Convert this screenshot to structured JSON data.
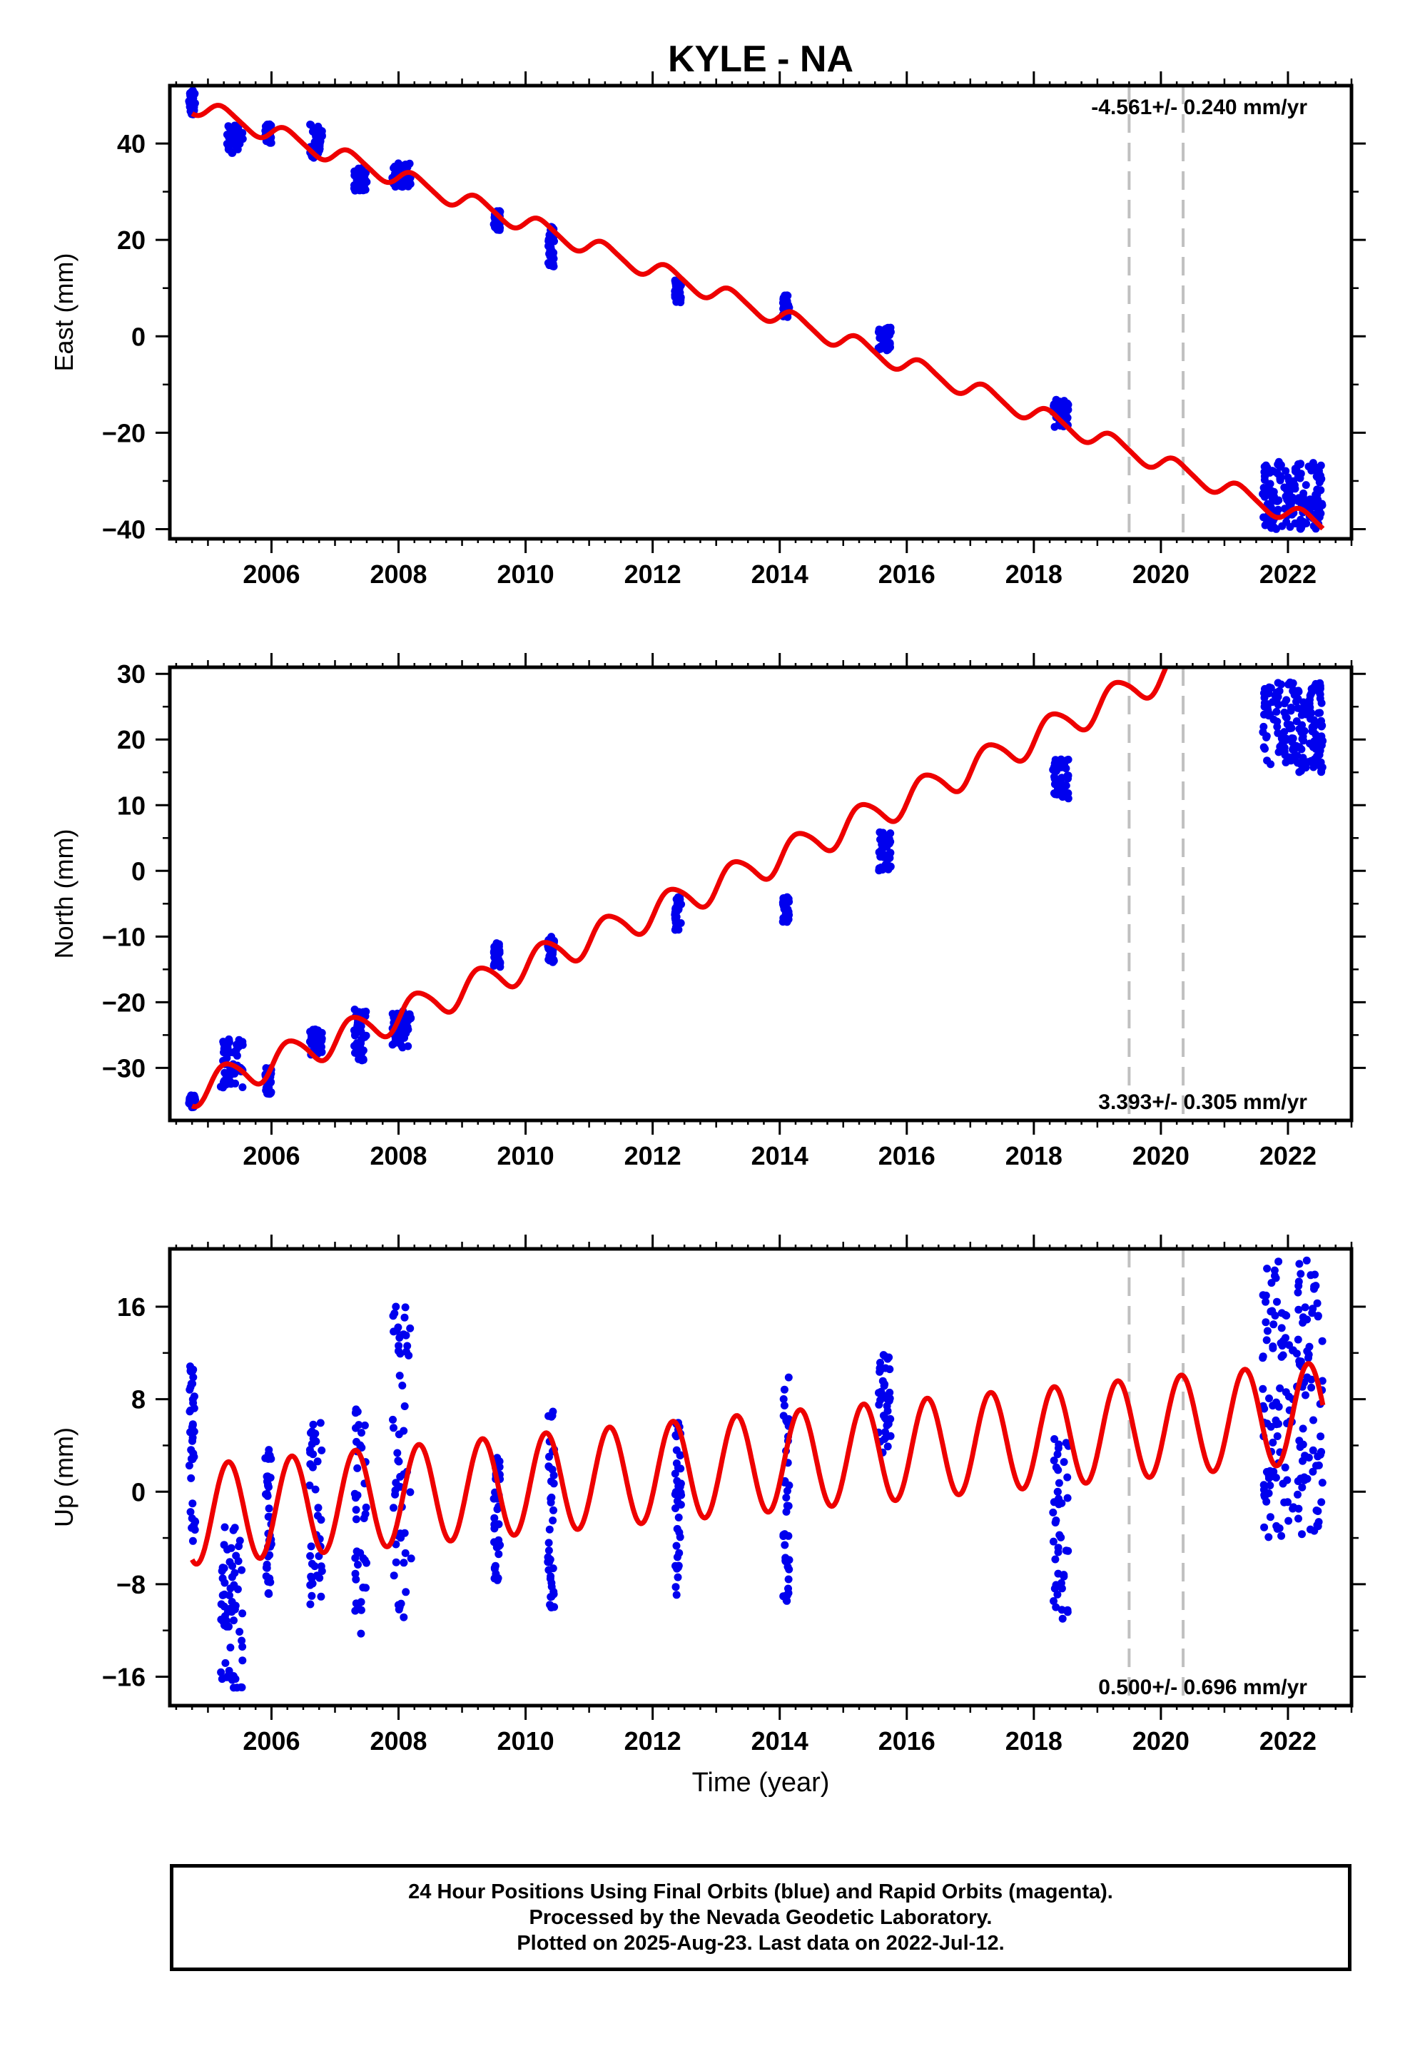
{
  "title": "KYLE - NA",
  "x_axis_label": "Time (year)",
  "footer": {
    "line1": "24 Hour Positions Using Final Orbits (blue) and Rapid Orbits (magenta).",
    "line2": "Processed by the Nevada Geodetic Laboratory.",
    "line3": "Plotted on 2025-Aug-23. Last data on 2022-Jul-12."
  },
  "colors": {
    "observations": "#0000ee",
    "model": "#ee0000",
    "event_lines": "#c0c0c0",
    "frame": "#000000"
  },
  "chart_data": [
    {
      "type": "scatter",
      "title": "KYLE - NA",
      "ylabel": "East (mm)",
      "xlabel": "",
      "rate_label": "-4.561+/- 0.240 mm/yr",
      "rate_label_position": "top-right",
      "xlim": [
        2004.4,
        2023.0
      ],
      "ylim": [
        -42,
        52
      ],
      "x_ticks": [
        2006,
        2008,
        2010,
        2012,
        2014,
        2016,
        2018,
        2020,
        2022
      ],
      "x_tick_labels": [
        "2006",
        "2008",
        "2010",
        "2012",
        "2014",
        "2016",
        "2018",
        "2020",
        "2022"
      ],
      "y_ticks": [
        -40,
        -20,
        0,
        20,
        40
      ],
      "y_tick_labels": [
        "−40",
        "−20",
        "0",
        "20",
        "40"
      ],
      "event_lines": [
        2019.5,
        2020.35
      ],
      "grid": false,
      "model": {
        "rate": -4.561,
        "y_at_2004_75": 48.0,
        "quadratic": -0.02,
        "annual_amp": 1.8,
        "annual_phase": 0.0,
        "semiannual_amp": 0.3,
        "semiannual_phase": 0.0
      },
      "observation_clusters": [
        {
          "x": [
            2004.7,
            2004.8
          ],
          "y_range": [
            46,
            51
          ]
        },
        {
          "x": [
            2005.3,
            2005.55
          ],
          "y_range": [
            38,
            44
          ]
        },
        {
          "x": [
            2005.9,
            2006.0
          ],
          "y_range": [
            40,
            44
          ]
        },
        {
          "x": [
            2006.6,
            2006.8
          ],
          "y_range": [
            37,
            44
          ]
        },
        {
          "x": [
            2007.3,
            2007.5
          ],
          "y_range": [
            30,
            35
          ]
        },
        {
          "x": [
            2007.9,
            2008.2
          ],
          "y_range": [
            31,
            36
          ]
        },
        {
          "x": [
            2009.5,
            2009.6
          ],
          "y_range": [
            22,
            26
          ]
        },
        {
          "x": [
            2010.35,
            2010.45
          ],
          "y_range": [
            14,
            23
          ]
        },
        {
          "x": [
            2012.35,
            2012.45
          ],
          "y_range": [
            7,
            12
          ]
        },
        {
          "x": [
            2014.05,
            2014.15
          ],
          "y_range": [
            4,
            9
          ]
        },
        {
          "x": [
            2015.55,
            2015.75
          ],
          "y_range": [
            -3,
            2
          ]
        },
        {
          "x": [
            2018.3,
            2018.55
          ],
          "y_range": [
            -19,
            -13
          ]
        },
        {
          "x": [
            2021.6,
            2022.55
          ],
          "y_range": [
            -40,
            -26
          ]
        }
      ]
    },
    {
      "type": "scatter",
      "title": "",
      "ylabel": "North (mm)",
      "xlabel": "",
      "rate_label": "3.393+/- 0.305 mm/yr",
      "rate_label_position": "bottom-right",
      "xlim": [
        2004.4,
        2023.0
      ],
      "ylim": [
        -38,
        31
      ],
      "x_ticks": [
        2006,
        2008,
        2010,
        2012,
        2014,
        2016,
        2018,
        2020,
        2022
      ],
      "x_tick_labels": [
        "2006",
        "2008",
        "2010",
        "2012",
        "2014",
        "2016",
        "2018",
        "2020",
        "2022"
      ],
      "y_ticks": [
        -30,
        -20,
        -10,
        0,
        10,
        20,
        30
      ],
      "y_tick_labels": [
        "−30",
        "−20",
        "−10",
        "0",
        "10",
        "20",
        "30"
      ],
      "event_lines": [
        2019.5,
        2020.35
      ],
      "grid": false,
      "model": {
        "rate": 3.393,
        "y_at_2004_75": -33.5,
        "quadratic": 0.05,
        "annual_amp": 2.4,
        "annual_phase": -0.3,
        "semiannual_amp": 0.3,
        "semiannual_phase": 0.0
      },
      "observation_clusters": [
        {
          "x": [
            2004.7,
            2004.8
          ],
          "y_range": [
            -36,
            -34
          ]
        },
        {
          "x": [
            2005.2,
            2005.55
          ],
          "y_range": [
            -33,
            -25
          ]
        },
        {
          "x": [
            2005.9,
            2006.0
          ],
          "y_range": [
            -34,
            -30
          ]
        },
        {
          "x": [
            2006.6,
            2006.8
          ],
          "y_range": [
            -28,
            -24
          ]
        },
        {
          "x": [
            2007.3,
            2007.5
          ],
          "y_range": [
            -29,
            -21
          ]
        },
        {
          "x": [
            2007.9,
            2008.2
          ],
          "y_range": [
            -27,
            -21
          ]
        },
        {
          "x": [
            2009.5,
            2009.6
          ],
          "y_range": [
            -15,
            -11
          ]
        },
        {
          "x": [
            2010.35,
            2010.45
          ],
          "y_range": [
            -14,
            -10
          ]
        },
        {
          "x": [
            2012.35,
            2012.45
          ],
          "y_range": [
            -9,
            -4
          ]
        },
        {
          "x": [
            2014.05,
            2014.15
          ],
          "y_range": [
            -8,
            -4
          ]
        },
        {
          "x": [
            2015.55,
            2015.75
          ],
          "y_range": [
            0,
            6
          ]
        },
        {
          "x": [
            2018.3,
            2018.55
          ],
          "y_range": [
            11,
            17
          ]
        },
        {
          "x": [
            2021.6,
            2022.55
          ],
          "y_range": [
            15,
            29
          ]
        }
      ]
    },
    {
      "type": "scatter",
      "title": "",
      "ylabel": "Up (mm)",
      "xlabel": "Time (year)",
      "rate_label": "0.500+/- 0.696 mm/yr",
      "rate_label_position": "bottom-right",
      "xlim": [
        2004.4,
        2023.0
      ],
      "ylim": [
        -18.5,
        21
      ],
      "x_ticks": [
        2006,
        2008,
        2010,
        2012,
        2014,
        2016,
        2018,
        2020,
        2022
      ],
      "x_tick_labels": [
        "2006",
        "2008",
        "2010",
        "2012",
        "2014",
        "2016",
        "2018",
        "2020",
        "2022"
      ],
      "y_ticks": [
        -16,
        -8,
        0,
        8,
        16
      ],
      "y_tick_labels": [
        "−16",
        "−8",
        "0",
        "8",
        "16"
      ],
      "event_lines": [
        2019.5,
        2020.35
      ],
      "grid": false,
      "model": {
        "rate": 0.5,
        "y_at_2004_75": -2.0,
        "quadratic": 0.0,
        "annual_amp": 4.3,
        "annual_phase": -0.45,
        "semiannual_amp": 0.0,
        "semiannual_phase": 0.0
      },
      "observation_clusters": [
        {
          "x": [
            2004.7,
            2004.8
          ],
          "y_range": [
            -5,
            11
          ]
        },
        {
          "x": [
            2005.2,
            2005.55
          ],
          "y_range": [
            -17,
            -3
          ]
        },
        {
          "x": [
            2005.9,
            2006.0
          ],
          "y_range": [
            -9,
            4
          ]
        },
        {
          "x": [
            2006.6,
            2006.8
          ],
          "y_range": [
            -10,
            6
          ]
        },
        {
          "x": [
            2007.3,
            2007.5
          ],
          "y_range": [
            -13,
            8
          ]
        },
        {
          "x": [
            2007.9,
            2008.2
          ],
          "y_range": [
            -11,
            17
          ]
        },
        {
          "x": [
            2009.5,
            2009.6
          ],
          "y_range": [
            -8,
            3
          ]
        },
        {
          "x": [
            2010.35,
            2010.45
          ],
          "y_range": [
            -11,
            7
          ]
        },
        {
          "x": [
            2012.35,
            2012.45
          ],
          "y_range": [
            -9,
            6
          ]
        },
        {
          "x": [
            2014.05,
            2014.15
          ],
          "y_range": [
            -10,
            10
          ]
        },
        {
          "x": [
            2015.55,
            2015.75
          ],
          "y_range": [
            2,
            12
          ]
        },
        {
          "x": [
            2018.3,
            2018.55
          ],
          "y_range": [
            -11,
            5
          ]
        },
        {
          "x": [
            2021.6,
            2022.55
          ],
          "y_range": [
            -4,
            20
          ]
        }
      ]
    }
  ]
}
